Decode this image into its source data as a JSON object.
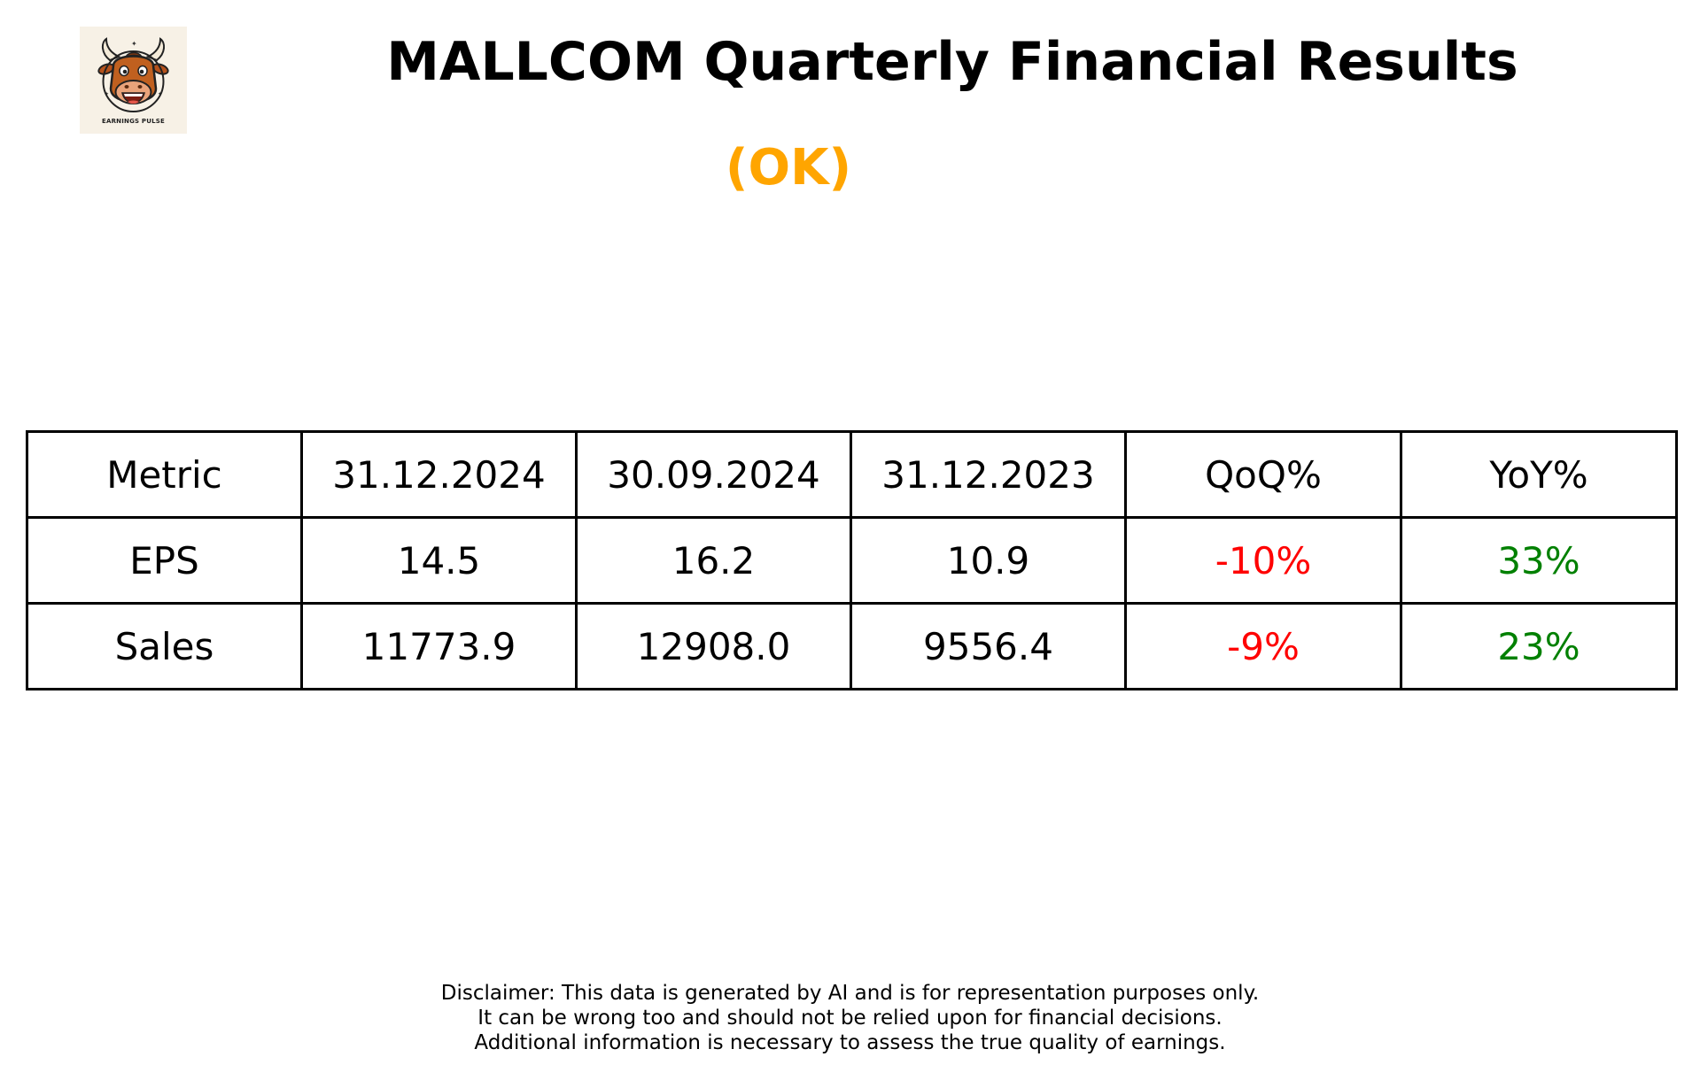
{
  "logo": {
    "icon": "bull-mascot-icon",
    "text": "EARNINGS PULSE"
  },
  "header": {
    "title": "MALLCOM Quarterly Financial Results",
    "rating": "(OK)",
    "rating_color": "#FFA500"
  },
  "table": {
    "columns": [
      "Metric",
      "31.12.2024",
      "30.09.2024",
      "31.12.2023",
      "QoQ%",
      "YoY%"
    ],
    "rows": [
      {
        "metric": "EPS",
        "q1": "14.5",
        "q2": "16.2",
        "q3": "10.9",
        "qoq": "-10%",
        "yoy": "33%"
      },
      {
        "metric": "Sales",
        "q1": "11773.9",
        "q2": "12908.0",
        "q3": "9556.4",
        "qoq": "-9%",
        "yoy": "23%"
      }
    ],
    "negative_color": "#FF0000",
    "positive_color": "#008000"
  },
  "disclaimer": {
    "lines": [
      "Disclaimer: This data is generated by AI and is for representation purposes only.",
      "It can be wrong too and should not be relied upon for financial decisions.",
      "Additional information is necessary to assess the true quality of earnings."
    ]
  }
}
